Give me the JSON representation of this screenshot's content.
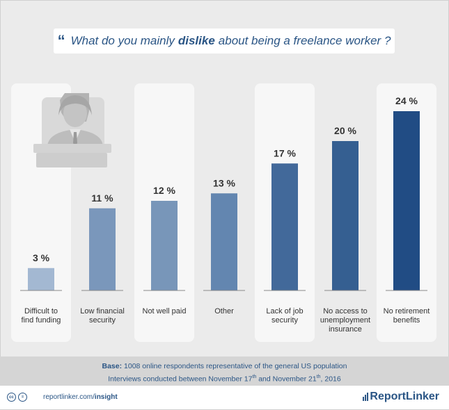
{
  "title": {
    "quote_mark": "“",
    "part1": "What do you mainly",
    "part2": "dislike",
    "part3": "about being a freelance worker ?"
  },
  "chart_data": {
    "type": "bar",
    "categories": [
      [
        "Difficult to",
        "find funding"
      ],
      [
        "Low financial",
        "security"
      ],
      [
        "Not well paid"
      ],
      [
        "Other"
      ],
      [
        "Lack of job",
        "security"
      ],
      [
        "No access to",
        "unemployment",
        "insurance"
      ],
      [
        "No retirement",
        "benefits"
      ]
    ],
    "values": [
      3,
      11,
      12,
      13,
      17,
      20,
      24
    ],
    "value_labels": [
      "3 %",
      "11 %",
      "12 %",
      "13 %",
      "17 %",
      "20 %",
      "24 %"
    ],
    "bar_colors": [
      "#a3b8d2",
      "#7a97bb",
      "#7896b9",
      "#6386b0",
      "#42699a",
      "#355f91",
      "#214c84"
    ],
    "highlighted_columns": [
      0,
      2,
      4,
      6
    ],
    "ylim": [
      0,
      24
    ]
  },
  "base": {
    "label": "Base:",
    "line1": "1008 online respondents representative of the general US population",
    "line2_a": "Interviews conducted between November 17",
    "sup1": "th",
    "line2_b": "and November 21",
    "sup2": "th",
    "line2_c": ", 2016"
  },
  "footer": {
    "url_plain": "reportlinker.com/",
    "url_bold": "insight",
    "brand": "ReportLinker",
    "cc_icons": [
      "cc",
      "="
    ]
  }
}
